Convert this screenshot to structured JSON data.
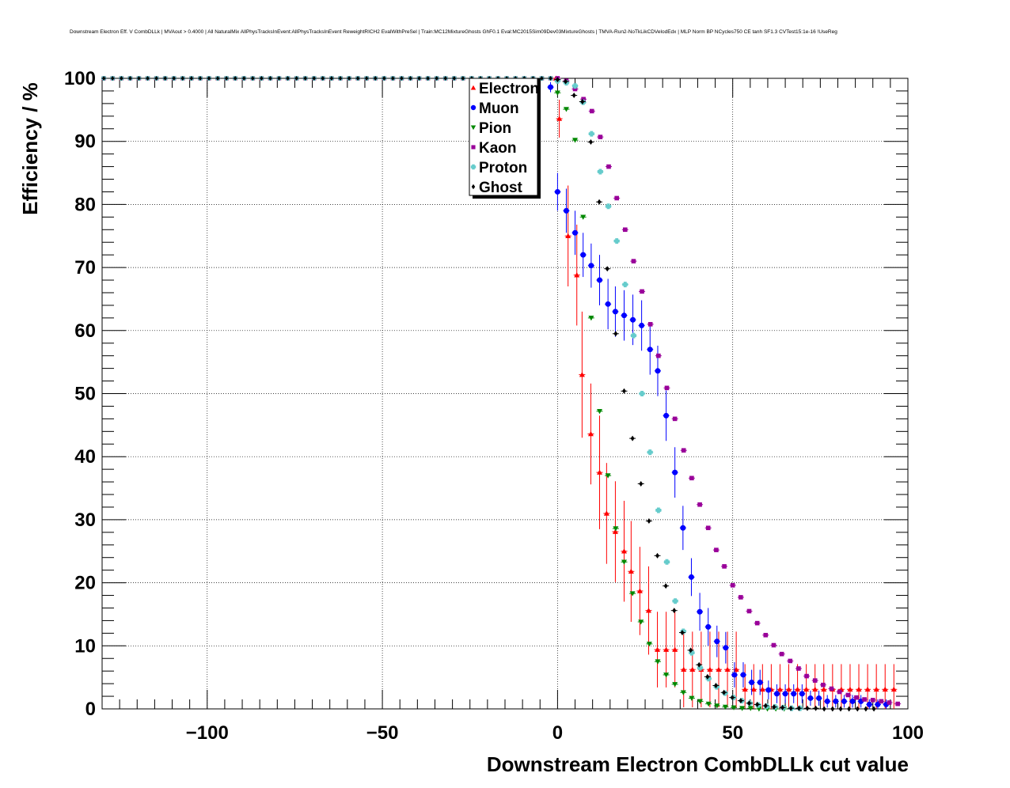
{
  "chart_data": {
    "type": "scatter",
    "title": "Downstream Electron Eff. V CombDLLk | MVAout > 0.4000 | All NaturalMix AllPhysTracksInEvent:AllPhysTracksInEvent ReweightRICH2 EvalWithPreSel | Train:MC12MixtureGhosts GhF0.1 Eval:MC2015Sim09Dev03MixtureGhosts | TMVA-Run2-NoTkLikCDVelodEdx | MLP Norm BP NCycles750 CE tanh SF1.3 CVTest15:1e-16 !UseReg",
    "xlabel": "Downstream Electron CombDLLk cut value",
    "ylabel": "Efficiency / %",
    "xlim": [
      -130,
      100
    ],
    "ylim": [
      0,
      100
    ],
    "x_ticks": [
      {
        "value": -100,
        "label": "−100"
      },
      {
        "value": -50,
        "label": "−50"
      },
      {
        "value": 0,
        "label": "0"
      },
      {
        "value": 50,
        "label": "50"
      },
      {
        "value": 100,
        "label": "100"
      }
    ],
    "y_ticks": [
      {
        "value": 0,
        "label": "0"
      },
      {
        "value": 10,
        "label": "10"
      },
      {
        "value": 20,
        "label": "20"
      },
      {
        "value": 30,
        "label": "30"
      },
      {
        "value": 40,
        "label": "40"
      },
      {
        "value": 50,
        "label": "50"
      },
      {
        "value": 60,
        "label": "60"
      },
      {
        "value": 70,
        "label": "70"
      },
      {
        "value": 80,
        "label": "80"
      },
      {
        "value": 90,
        "label": "90"
      },
      {
        "value": 100,
        "label": "100"
      }
    ],
    "grid": true,
    "legend_position": "top-center",
    "plateau": {
      "x_start": -129.5,
      "x_step": 2.5,
      "x_end": -2,
      "value": 100
    },
    "series": [
      {
        "name": "Electron",
        "color": "#ff0000",
        "marker": "triangle-up",
        "points": [
          [
            -0.5,
            100,
            0
          ],
          [
            0.5,
            93.6,
            3
          ],
          [
            3,
            75,
            8
          ],
          [
            5.5,
            68.8,
            8
          ],
          [
            7,
            53,
            10
          ],
          [
            9.5,
            43.6,
            8
          ],
          [
            12,
            37.5,
            9
          ],
          [
            14,
            31,
            8
          ],
          [
            16.5,
            28.1,
            8
          ],
          [
            19,
            25,
            8
          ],
          [
            21,
            21.8,
            8
          ],
          [
            23.5,
            18.7,
            7
          ],
          [
            26,
            15.6,
            7
          ],
          [
            28.5,
            9.4,
            6
          ],
          [
            31,
            9.4,
            6
          ],
          [
            33.5,
            9.4,
            6
          ],
          [
            36,
            6.25,
            6
          ],
          [
            38.5,
            6.25,
            6
          ],
          [
            41,
            6.25,
            6
          ],
          [
            43.5,
            6.25,
            6
          ],
          [
            46,
            6.25,
            6
          ],
          [
            48.5,
            6.25,
            6
          ],
          [
            51,
            6.25,
            6
          ],
          [
            53.5,
            3.1,
            4
          ],
          [
            56,
            3.1,
            4
          ],
          [
            58.5,
            3.1,
            4
          ],
          [
            61,
            3.1,
            4
          ],
          [
            63.5,
            3.1,
            4
          ],
          [
            66,
            3.1,
            4
          ],
          [
            68.5,
            3.1,
            4
          ],
          [
            71,
            3.1,
            4
          ],
          [
            73.5,
            3.1,
            4
          ],
          [
            76,
            3.1,
            4
          ],
          [
            78.5,
            3.1,
            4
          ],
          [
            81,
            3.1,
            4
          ],
          [
            83.5,
            3.1,
            4
          ],
          [
            86,
            3.1,
            4
          ],
          [
            88.5,
            3.1,
            4
          ],
          [
            91,
            3.1,
            4
          ],
          [
            93.5,
            3.1,
            4
          ],
          [
            96,
            3.1,
            4
          ]
        ]
      },
      {
        "name": "Muon",
        "color": "#0000ff",
        "marker": "circle",
        "points": [
          [
            -2,
            98.6,
            0.8
          ],
          [
            0,
            82,
            3
          ],
          [
            2.5,
            79,
            3.5
          ],
          [
            5,
            75.5,
            3.5
          ],
          [
            7.3,
            72,
            3.5
          ],
          [
            9.6,
            70.3,
            3.5
          ],
          [
            12,
            68,
            4
          ],
          [
            14.4,
            64.2,
            4
          ],
          [
            16.5,
            63,
            4
          ],
          [
            19,
            62.4,
            4
          ],
          [
            21.5,
            61.7,
            4
          ],
          [
            24,
            60.8,
            4
          ],
          [
            26.4,
            57,
            4
          ],
          [
            28.6,
            53.6,
            4
          ],
          [
            31,
            46.5,
            4
          ],
          [
            33.5,
            37.5,
            4
          ],
          [
            35.8,
            28.7,
            3.5
          ],
          [
            38.2,
            20.9,
            3
          ],
          [
            40.6,
            15.4,
            3
          ],
          [
            43,
            13,
            3
          ],
          [
            45.5,
            10.7,
            2.5
          ],
          [
            48,
            9.7,
            2.5
          ],
          [
            50.5,
            5.4,
            2
          ],
          [
            53,
            5.4,
            2
          ],
          [
            55.4,
            4.2,
            2
          ],
          [
            57.8,
            4.2,
            2
          ],
          [
            60.2,
            3,
            1.5
          ],
          [
            62.6,
            2.4,
            1.5
          ],
          [
            65,
            2.4,
            1.5
          ],
          [
            67.4,
            2.4,
            1.5
          ],
          [
            69.8,
            2.4,
            1.5
          ],
          [
            72.2,
            1.7,
            1.2
          ],
          [
            74.6,
            1.7,
            1.2
          ],
          [
            77,
            1.2,
            1
          ],
          [
            79.4,
            1.2,
            1
          ],
          [
            81.8,
            1.2,
            1
          ],
          [
            84.2,
            1.2,
            1
          ],
          [
            86.6,
            1.2,
            1
          ],
          [
            89,
            0.7,
            0.8
          ],
          [
            91.4,
            0.7,
            0.8
          ],
          [
            93.8,
            0.7,
            0.8
          ]
        ]
      },
      {
        "name": "Pion",
        "color": "#008800",
        "marker": "triangle-down",
        "points": [
          [
            0,
            97.7,
            0
          ],
          [
            2.5,
            95.1,
            0
          ],
          [
            5,
            90.2,
            0
          ],
          [
            7.3,
            78,
            0
          ],
          [
            9.6,
            62,
            0
          ],
          [
            12,
            47.2,
            0
          ],
          [
            14.4,
            37,
            0
          ],
          [
            16.6,
            28.6,
            0
          ],
          [
            19,
            23.3,
            0
          ],
          [
            21.4,
            18.3,
            0
          ],
          [
            23.8,
            13.8,
            0
          ],
          [
            26.2,
            10.3,
            0
          ],
          [
            28.6,
            7.5,
            0
          ],
          [
            31,
            5.4,
            0
          ],
          [
            33.5,
            3.9,
            0
          ],
          [
            35.9,
            2.6,
            0
          ],
          [
            38.3,
            1.7,
            0
          ],
          [
            40.7,
            1.2,
            0
          ],
          [
            43.1,
            0.8,
            0
          ],
          [
            45.5,
            0.5,
            0
          ],
          [
            47.9,
            0.3,
            0
          ],
          [
            50.3,
            0.2,
            0
          ],
          [
            52.7,
            0.1,
            0
          ],
          [
            55.1,
            0.1,
            0
          ],
          [
            57.5,
            0,
            0
          ],
          [
            59.9,
            0,
            0
          ],
          [
            62.3,
            0,
            0
          ],
          [
            64.7,
            0,
            0
          ]
        ]
      },
      {
        "name": "Kaon",
        "color": "#990099",
        "marker": "square",
        "points": [
          [
            0,
            100,
            0
          ],
          [
            2.5,
            99.6,
            0
          ],
          [
            5,
            98.3,
            0
          ],
          [
            7.4,
            96.7,
            0
          ],
          [
            9.8,
            94.8,
            0
          ],
          [
            12.2,
            90.7,
            0
          ],
          [
            14.6,
            86,
            0
          ],
          [
            16.9,
            81,
            0
          ],
          [
            19.3,
            76,
            0
          ],
          [
            21.7,
            71,
            0
          ],
          [
            24.1,
            66.2,
            0
          ],
          [
            26.5,
            61,
            0
          ],
          [
            28.8,
            56,
            0
          ],
          [
            31.2,
            50.9,
            0
          ],
          [
            33.5,
            46,
            0
          ],
          [
            36,
            41,
            0
          ],
          [
            38.3,
            36.6,
            0
          ],
          [
            40.6,
            32.4,
            0
          ],
          [
            43,
            28.7,
            0
          ],
          [
            45.3,
            25.2,
            0
          ],
          [
            47.6,
            22.6,
            0
          ],
          [
            50,
            19.6,
            0
          ],
          [
            52.3,
            17.7,
            0
          ],
          [
            54.7,
            15.5,
            0
          ],
          [
            57,
            13.6,
            0
          ],
          [
            59.4,
            11.7,
            0
          ],
          [
            61.7,
            10.1,
            0
          ],
          [
            64,
            8.7,
            0
          ],
          [
            66.4,
            7.6,
            0
          ],
          [
            68.8,
            6.4,
            0
          ],
          [
            71.1,
            5.2,
            0
          ],
          [
            73.5,
            4.5,
            0
          ],
          [
            75.8,
            3.8,
            0
          ],
          [
            78.2,
            3.2,
            0
          ],
          [
            80.5,
            2.7,
            0
          ],
          [
            82.9,
            2.2,
            0
          ],
          [
            85.3,
            1.8,
            0
          ],
          [
            87.6,
            1.5,
            0
          ],
          [
            90,
            1.4,
            0
          ],
          [
            92.4,
            1.2,
            0
          ],
          [
            94.7,
            1,
            0
          ],
          [
            97.1,
            0.8,
            0
          ]
        ]
      },
      {
        "name": "Proton",
        "color": "#66cccc",
        "marker": "cross",
        "points": [
          [
            0,
            99.6,
            0
          ],
          [
            2.5,
            99.3,
            0
          ],
          [
            5,
            98.8,
            0
          ],
          [
            7.3,
            96.2,
            0
          ],
          [
            9.7,
            91.2,
            0
          ],
          [
            12.2,
            85.2,
            0
          ],
          [
            14.5,
            79.7,
            0
          ],
          [
            16.9,
            74.2,
            0
          ],
          [
            19.3,
            67.3,
            0
          ],
          [
            21.7,
            59.2,
            0
          ],
          [
            24.1,
            50,
            0
          ],
          [
            26.4,
            40.7,
            0
          ],
          [
            28.8,
            31.5,
            0
          ],
          [
            31.2,
            23.3,
            0
          ],
          [
            33.6,
            17.1,
            0
          ],
          [
            35.9,
            12.3,
            0
          ],
          [
            38.3,
            8.9,
            0
          ],
          [
            40.7,
            6.5,
            0
          ],
          [
            43.1,
            4.8,
            0
          ],
          [
            45.4,
            3.5,
            0
          ],
          [
            47.8,
            2.5,
            0
          ],
          [
            50.2,
            1.8,
            0
          ],
          [
            52.6,
            1.3,
            0
          ],
          [
            54.9,
            0.9,
            0
          ],
          [
            57.3,
            0.6,
            0
          ],
          [
            59.7,
            0.4,
            0
          ],
          [
            62.1,
            0.3,
            0
          ],
          [
            64.4,
            0.2,
            0
          ],
          [
            66.8,
            0.1,
            0
          ],
          [
            69.2,
            0.1,
            0
          ]
        ]
      },
      {
        "name": "Ghost",
        "color": "#000000",
        "marker": "diamond",
        "points": [
          [
            0,
            99.8,
            0
          ],
          [
            2.3,
            99.5,
            0
          ],
          [
            4.7,
            97.3,
            0
          ],
          [
            7.1,
            96.3,
            0
          ],
          [
            9.5,
            89.9,
            0
          ],
          [
            11.9,
            80.4,
            0
          ],
          [
            14.2,
            69.8,
            0
          ],
          [
            16.6,
            59.5,
            0
          ],
          [
            19,
            50.4,
            0
          ],
          [
            21.4,
            42.9,
            0
          ],
          [
            23.8,
            35.7,
            0
          ],
          [
            26.1,
            29.8,
            0
          ],
          [
            28.5,
            24.3,
            0
          ],
          [
            30.9,
            19.5,
            0
          ],
          [
            33.3,
            15.6,
            0
          ],
          [
            35.6,
            12.1,
            0
          ],
          [
            38,
            9.3,
            0
          ],
          [
            40.4,
            7,
            0
          ],
          [
            42.8,
            5.1,
            0
          ],
          [
            45.2,
            3.7,
            0
          ],
          [
            47.5,
            2.6,
            0
          ],
          [
            49.9,
            1.8,
            0
          ],
          [
            52.3,
            1.3,
            0
          ],
          [
            54.7,
            0.9,
            0
          ],
          [
            57,
            0.7,
            0
          ],
          [
            59.4,
            0.5,
            0
          ],
          [
            61.8,
            0.3,
            0
          ],
          [
            64.2,
            0.2,
            0
          ],
          [
            66.6,
            0.1,
            0
          ],
          [
            68.9,
            0.1,
            0
          ],
          [
            71.3,
            0.1,
            0
          ],
          [
            73.7,
            0.1,
            0
          ],
          [
            76.1,
            0,
            0
          ],
          [
            78.5,
            0,
            0
          ],
          [
            80.8,
            0,
            0
          ],
          [
            83.2,
            0,
            0
          ],
          [
            85.6,
            0,
            0
          ],
          [
            88,
            0,
            0
          ],
          [
            90.3,
            0,
            0
          ]
        ]
      }
    ]
  }
}
